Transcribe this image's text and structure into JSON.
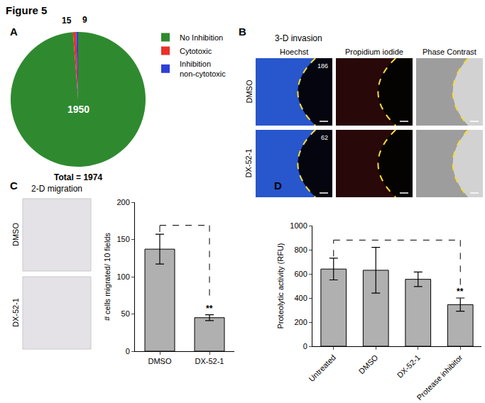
{
  "figure": {
    "title": "Figure 5"
  },
  "panels": {
    "A": {
      "label": "A"
    },
    "B": {
      "label": "B",
      "title": "3-D invasion",
      "columns": [
        "Hoechst",
        "Propidium iodide",
        "Phase Contrast"
      ],
      "rows": [
        "DMSO",
        "DX-52-1"
      ],
      "counts": [
        186,
        62
      ]
    },
    "C": {
      "label": "C",
      "title": "2-D migration",
      "rows": [
        "DMSO",
        "DX-52-1"
      ]
    },
    "D": {
      "label": "D"
    }
  },
  "chart_data": [
    {
      "type": "pie",
      "categories": [
        "No Inhibition",
        "Cytotoxic",
        "Inhibition non-cytotoxic"
      ],
      "values": [
        1950,
        15,
        9
      ],
      "colors": [
        "#2f8a2f",
        "#e8312a",
        "#2f3fd6"
      ],
      "data_labels": true,
      "legend": "right",
      "annotations": [
        {
          "text": "Total = 1974"
        }
      ]
    },
    {
      "type": "bar",
      "categories": [
        "DMSO",
        "DX-52-1"
      ],
      "values": [
        137,
        45
      ],
      "errors": [
        20,
        4
      ],
      "color": "#b0b0b0",
      "ylabel": "# cells migrated/ 10 fields",
      "ylim": [
        0,
        200
      ],
      "yticks": [
        0,
        50,
        100,
        150,
        200
      ],
      "annotations": [
        {
          "text": "**",
          "category": "DX-52-1",
          "compared_to": "DMSO"
        }
      ]
    },
    {
      "type": "bar",
      "categories": [
        "Untreated",
        "DMSO",
        "DX-52-1",
        "Protease inhibitor"
      ],
      "values": [
        640,
        630,
        555,
        345
      ],
      "errors": [
        90,
        190,
        60,
        55
      ],
      "color": "#b0b0b0",
      "ylabel": "Proteolytic activity (RFU)",
      "ylim": [
        0,
        1000
      ],
      "yticks": [
        0,
        200,
        400,
        600,
        800,
        1000
      ],
      "annotations": [
        {
          "text": "**",
          "category": "Protease inhibitor",
          "compared_to": "Untreated"
        }
      ]
    }
  ]
}
